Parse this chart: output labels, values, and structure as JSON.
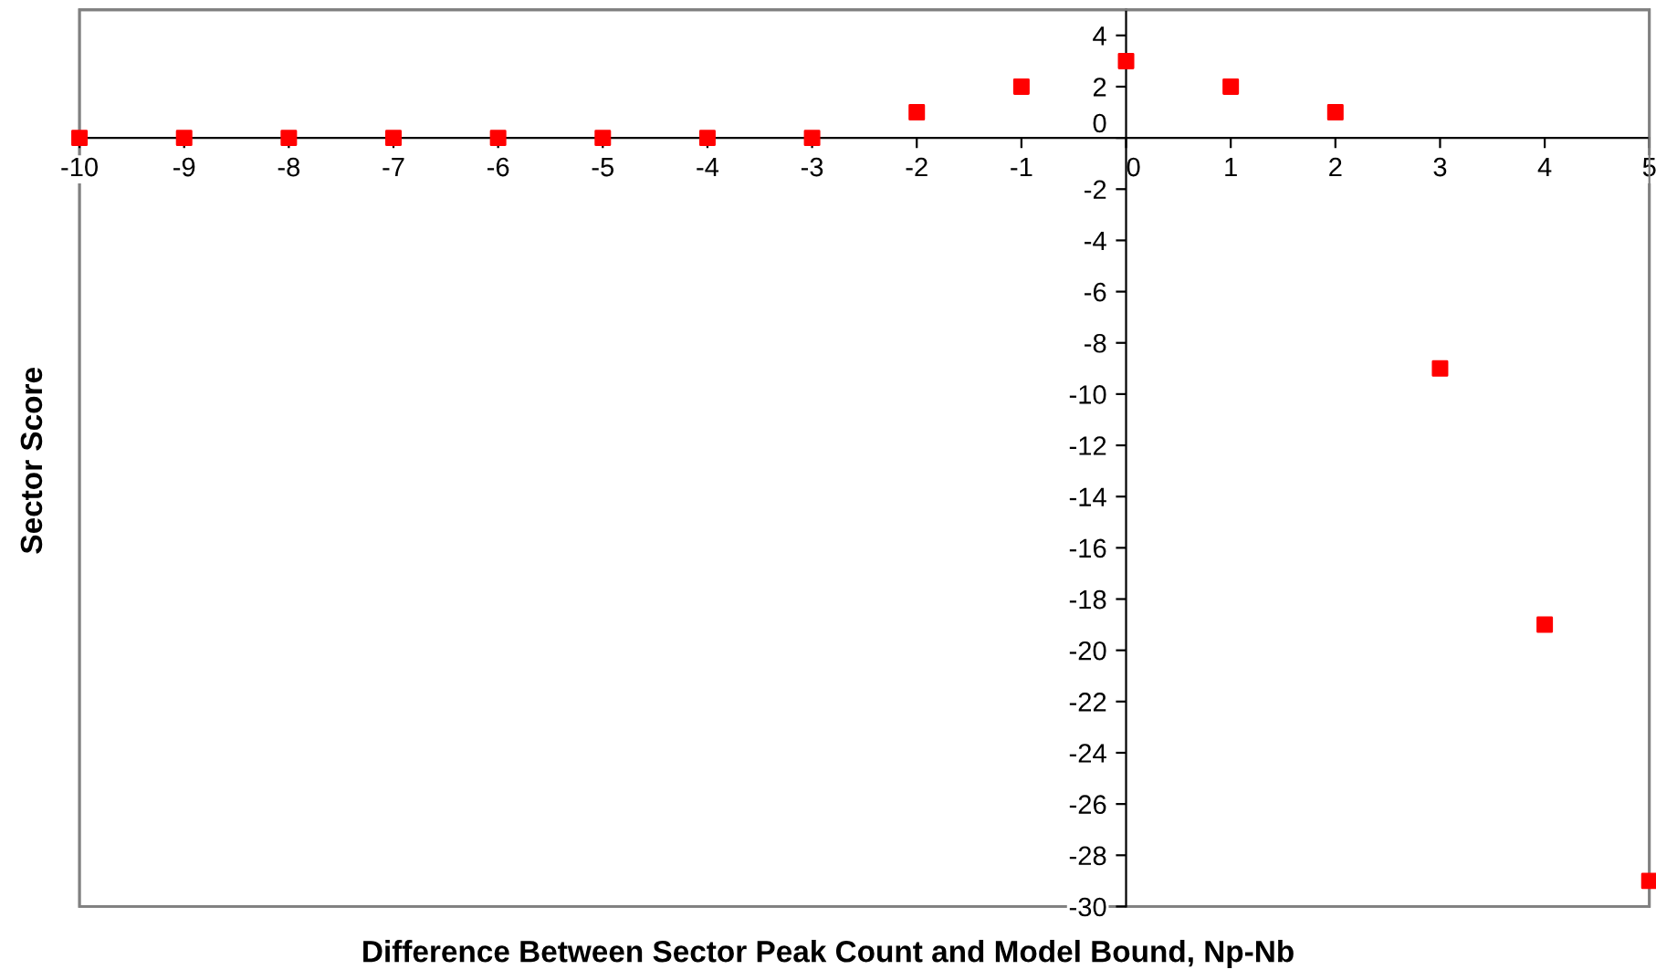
{
  "chart_data": {
    "type": "scatter",
    "xlabel": "Difference Between Sector Peak Count and Model Bound, Np-Nb",
    "ylabel": "Sector Score",
    "x": [
      -10,
      -9,
      -8,
      -7,
      -6,
      -5,
      -4,
      -3,
      -2,
      -1,
      0,
      1,
      2,
      3,
      4,
      5
    ],
    "series": [
      {
        "color": "#ff0000",
        "values": [
          0,
          0,
          0,
          0,
          0,
          0,
          0,
          0,
          1,
          2,
          3,
          2,
          1,
          -9,
          -19,
          -29
        ]
      }
    ],
    "xlim": [
      -10,
      5
    ],
    "ylim": [
      -30,
      5
    ],
    "xticks": [
      -10,
      -9,
      -8,
      -7,
      -6,
      -5,
      -4,
      -3,
      -2,
      -1,
      0,
      1,
      2,
      3,
      4,
      5
    ],
    "yticks": [
      -30,
      -28,
      -26,
      -24,
      -22,
      -20,
      -18,
      -16,
      -14,
      -12,
      -10,
      -8,
      -6,
      -4,
      -2,
      0,
      2,
      4
    ],
    "marker": "square",
    "grid": false,
    "legend": false
  }
}
